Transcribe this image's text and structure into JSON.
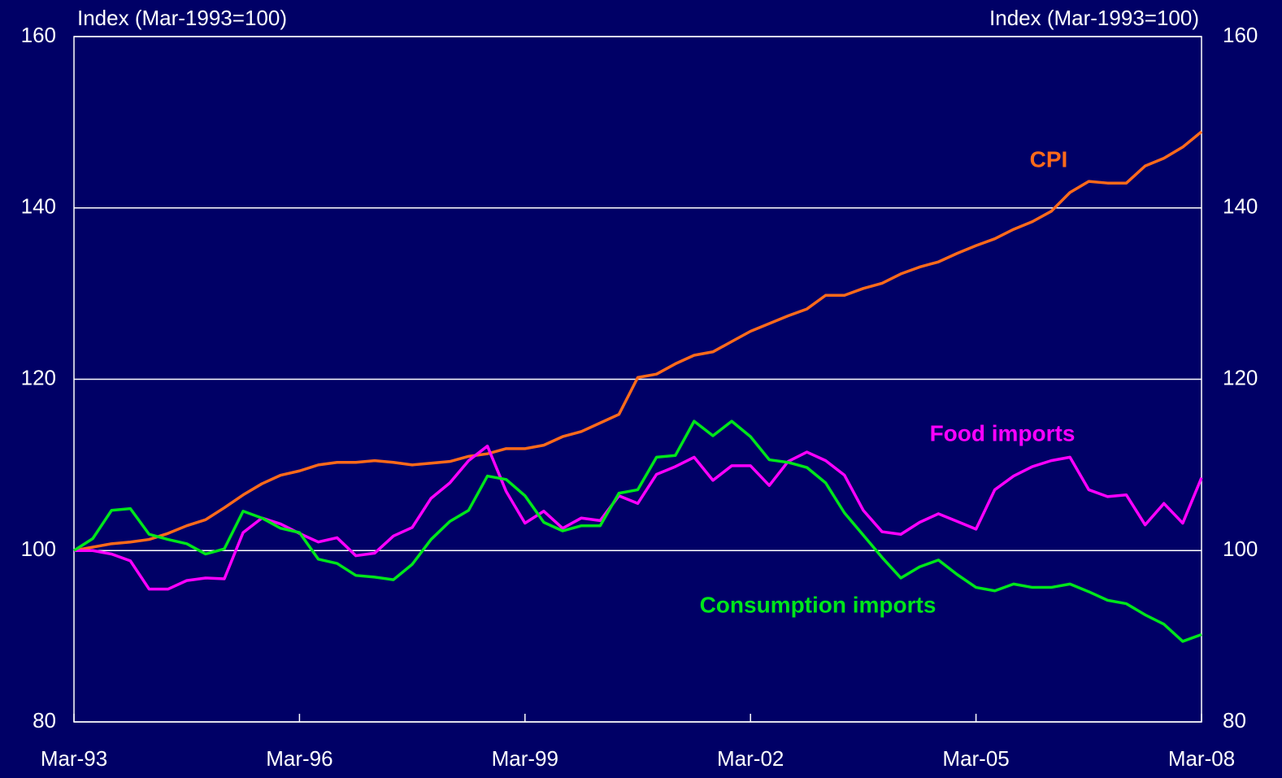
{
  "chart_data": {
    "type": "line",
    "y_label": "Index (Mar-1993=100)",
    "y2_label": "Index (Mar-1993=100)",
    "categories": [
      "Mar-93",
      null,
      null,
      null,
      null,
      null,
      null,
      null,
      null,
      null,
      null,
      null,
      "Mar-96",
      null,
      null,
      null,
      null,
      null,
      null,
      null,
      null,
      null,
      null,
      null,
      "Mar-99",
      null,
      null,
      null,
      null,
      null,
      null,
      null,
      null,
      null,
      null,
      null,
      "Mar-02",
      null,
      null,
      null,
      null,
      null,
      null,
      null,
      null,
      null,
      null,
      null,
      "Mar-05",
      null,
      null,
      null,
      null,
      null,
      null,
      null,
      null,
      null,
      null,
      null,
      "Mar-08"
    ],
    "ylim": [
      80,
      160
    ],
    "yticks": [
      80,
      100,
      120,
      140,
      160
    ],
    "y2lim": [
      80,
      160
    ],
    "y2ticks": [
      80,
      100,
      120,
      140,
      160
    ],
    "grid": true,
    "series": [
      {
        "name": "CPI",
        "color": "#ff6a1a",
        "values": [
          100,
          100.4,
          100.8,
          101,
          101.3,
          102,
          102.9,
          103.6,
          105,
          106.5,
          107.8,
          108.8,
          109.3,
          110,
          110.3,
          110.3,
          110.5,
          110.3,
          110,
          110.2,
          110.4,
          111,
          111.3,
          111.9,
          111.9,
          112.3,
          113.3,
          113.9,
          114.9,
          115.9,
          120.2,
          120.6,
          121.8,
          122.8,
          123.2,
          124.4,
          125.6,
          126.5,
          127.4,
          128.2,
          129.8,
          129.8,
          130.6,
          131.2,
          132.3,
          133.1,
          133.7,
          134.7,
          135.6,
          136.4,
          137.5,
          138.4,
          139.6,
          141.8,
          143.1,
          142.9,
          142.9,
          144.9,
          145.8,
          147.1,
          148.9
        ]
      },
      {
        "name": "Food imports",
        "color": "#ff00ff",
        "values": [
          100,
          100,
          99.6,
          98.8,
          95.5,
          95.5,
          96.5,
          96.8,
          96.7,
          102.1,
          103.8,
          103.1,
          102,
          101,
          101.5,
          99.4,
          99.7,
          101.7,
          102.7,
          106.1,
          107.9,
          110.5,
          112.2,
          106.9,
          103.2,
          104.6,
          102.6,
          103.8,
          103.5,
          106.4,
          105.5,
          108.9,
          109.8,
          110.9,
          108.2,
          109.9,
          109.9,
          107.6,
          110.4,
          111.5,
          110.5,
          108.8,
          104.7,
          102.2,
          101.9,
          103.3,
          104.3,
          103.4,
          102.5,
          107.1,
          108.7,
          109.8,
          110.5,
          110.9,
          107.1,
          106.3,
          106.5,
          103,
          105.5,
          103.2,
          108.5
        ]
      },
      {
        "name": "Consumption imports",
        "color": "#00e61a",
        "values": [
          100,
          101.4,
          104.7,
          104.9,
          101.9,
          101.3,
          100.8,
          99.6,
          100.2,
          104.6,
          103.8,
          102.6,
          102.1,
          99,
          98.5,
          97.1,
          96.9,
          96.6,
          98.4,
          101.3,
          103.4,
          104.7,
          108.7,
          108.3,
          106.4,
          103.3,
          102.3,
          102.9,
          102.9,
          106.7,
          107.1,
          110.9,
          111.1,
          115.1,
          113.4,
          115.1,
          113.3,
          110.6,
          110.3,
          109.7,
          107.9,
          104.4,
          101.8,
          99.2,
          96.8,
          98.1,
          98.9,
          97.2,
          95.7,
          95.3,
          96.1,
          95.7,
          95.7,
          96.1,
          95.2,
          94.2,
          93.8,
          92.5,
          91.4,
          89.4,
          90.2
        ]
      }
    ]
  }
}
